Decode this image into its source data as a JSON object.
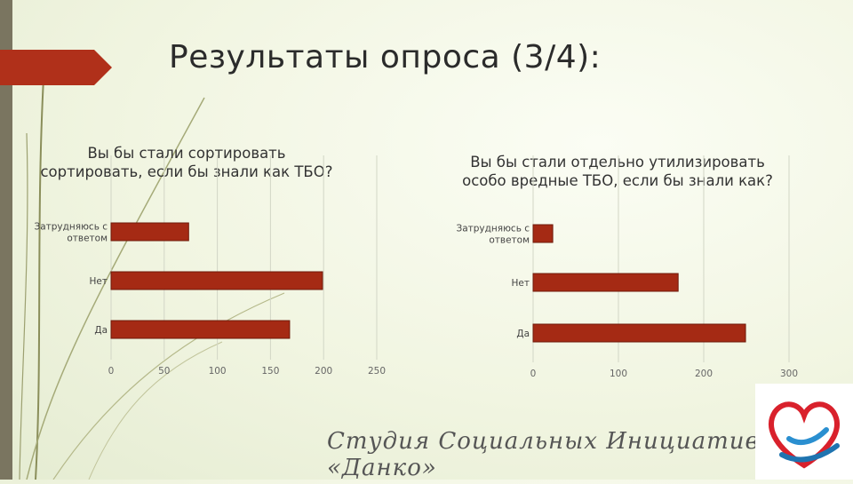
{
  "slide": {
    "title": "Результаты опроса (3/4):",
    "footer": "Студия Социальных Инициатив «Данко»"
  },
  "colors": {
    "bar": "#a52a14",
    "bar_stroke": "#6e1a0a",
    "accent_arrow": "#b0301a",
    "gridline": "#d2d6c6",
    "logo_red": "#d9212c",
    "logo_blue": "#2a8fd0"
  },
  "icons": {
    "logo": "heart-hand-logo"
  },
  "chart_data": [
    {
      "type": "bar",
      "orientation": "horizontal",
      "title": "Вы бы стали сортировать сортировать, если бы знали как ТБО?",
      "categories": [
        "Затрудняюсь с ответом",
        "Нет",
        "Да"
      ],
      "values": [
        73,
        199,
        168
      ],
      "xlim": [
        0,
        250
      ],
      "xticks": [
        "0",
        "50",
        "100",
        "150",
        "200",
        "250"
      ],
      "grid": true,
      "legend": "none"
    },
    {
      "type": "bar",
      "orientation": "horizontal",
      "title": "Вы бы стали отдельно утилизировать особо вредные ТБО, если бы знали как?",
      "categories": [
        "Затрудняюсь с ответом",
        "Нет",
        "Да"
      ],
      "values": [
        23,
        170,
        249
      ],
      "xlim": [
        0,
        300
      ],
      "xticks": [
        "0",
        "100",
        "200",
        "300"
      ],
      "grid": true,
      "legend": "none"
    }
  ]
}
